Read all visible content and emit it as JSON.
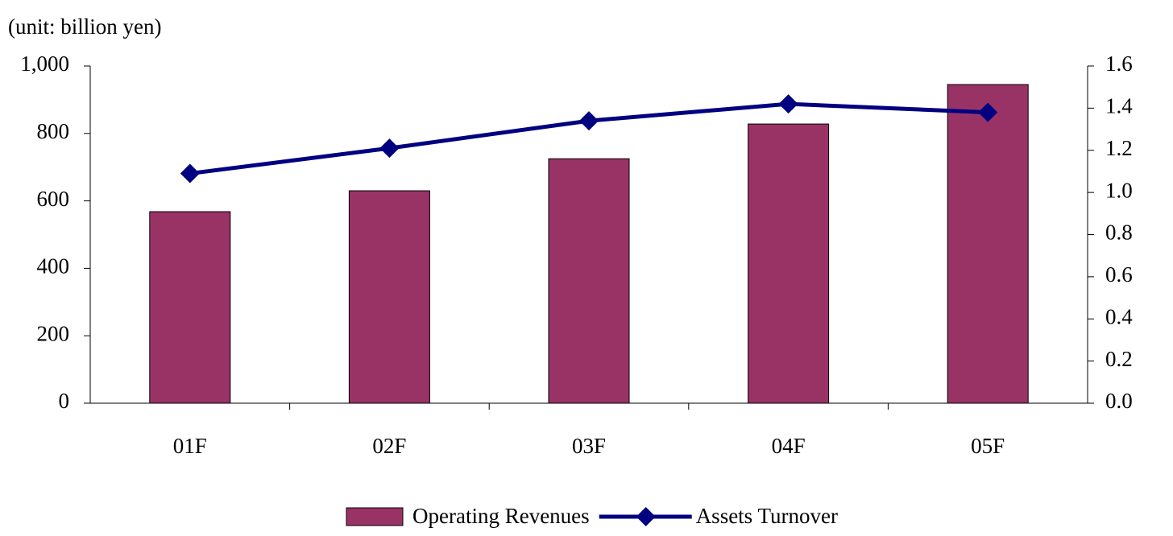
{
  "chart_data": {
    "type": "bar_line",
    "subtitle": "(unit: billion yen)",
    "categories": [
      "01F",
      "02F",
      "03F",
      "04F",
      "05F"
    ],
    "series": [
      {
        "name": "Operating Revenues",
        "type": "bar",
        "color": "#993366",
        "values": [
          568,
          630,
          725,
          828,
          945
        ]
      },
      {
        "name": "Assets Turnover",
        "type": "line",
        "axis": "y2",
        "color": "#000080",
        "values": [
          1.09,
          1.21,
          1.34,
          1.42,
          1.38
        ]
      }
    ],
    "ylim": [
      0,
      1000
    ],
    "yticks": [
      0,
      200,
      400,
      600,
      800,
      {
        "value": 1000,
        "label": "1,000"
      }
    ],
    "y2lim": [
      0,
      1.6
    ],
    "y2ticks": [
      {
        "value": 0,
        "label": "0.0"
      },
      0.2,
      0.4,
      0.6,
      0.8,
      {
        "value": 1,
        "label": "1.0"
      },
      1.2,
      1.4,
      1.6
    ],
    "legend": "bottom"
  }
}
